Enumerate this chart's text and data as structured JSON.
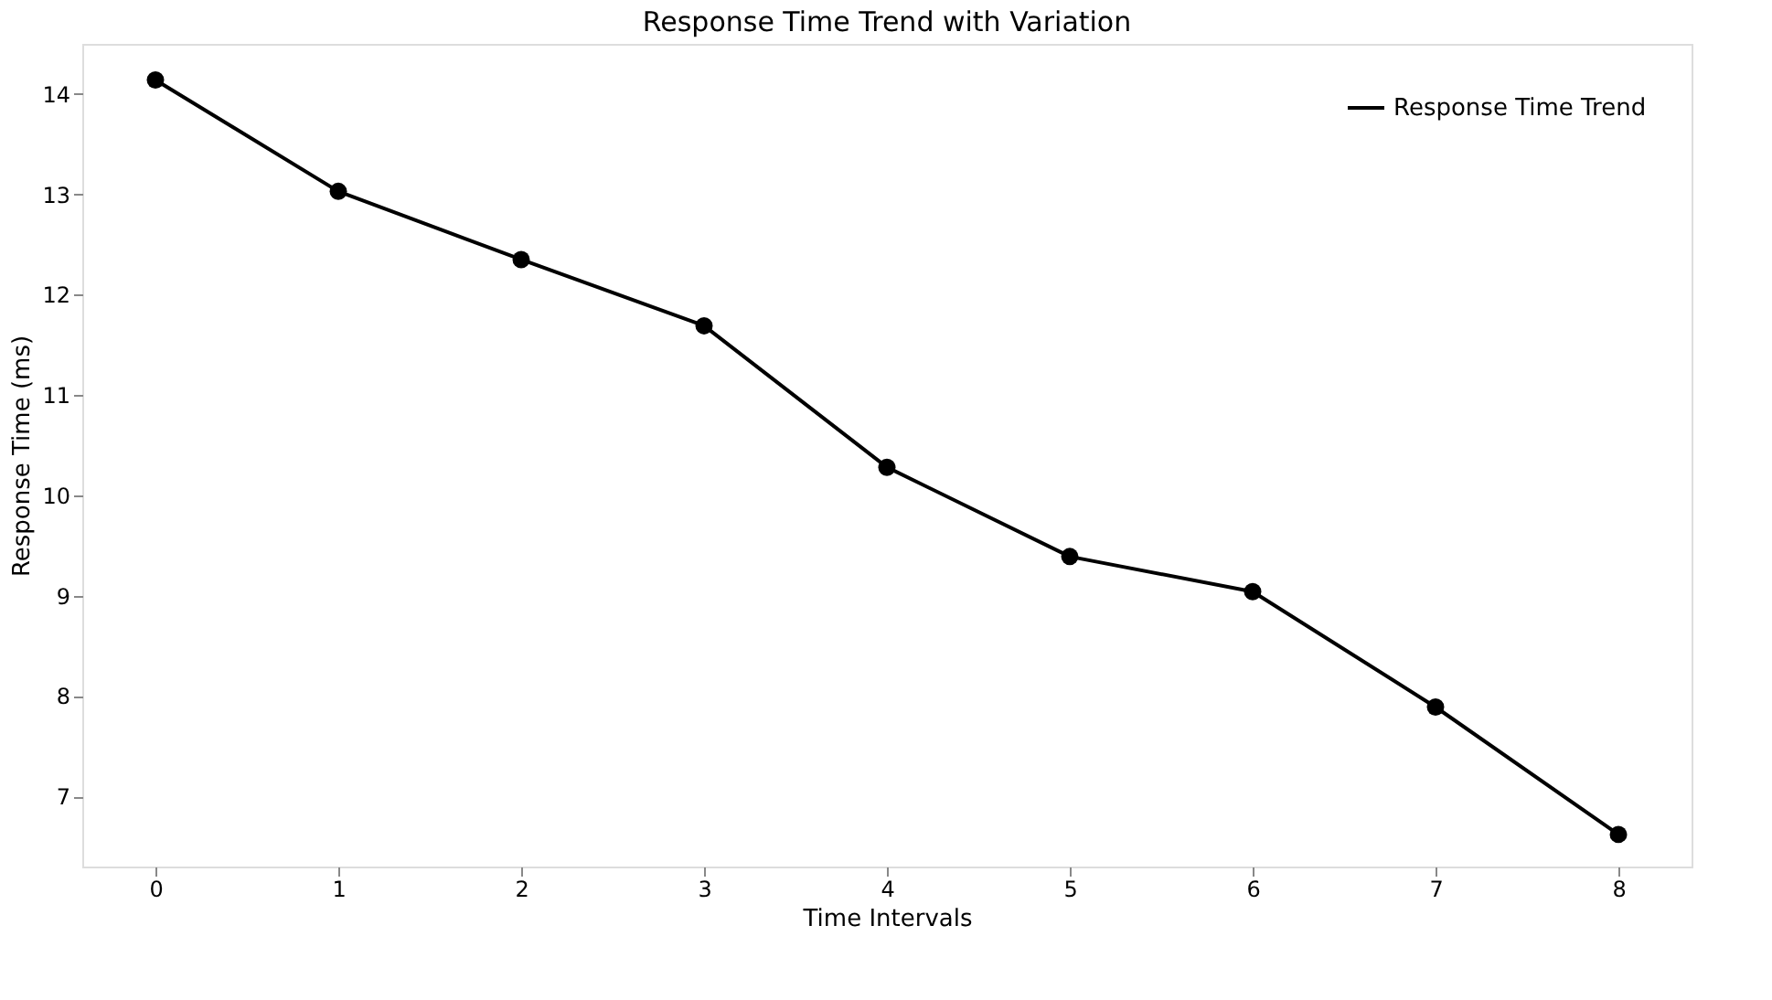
{
  "chart_data": {
    "type": "line",
    "title": "Response Time Trend with Variation",
    "xlabel": "Time Intervals",
    "ylabel": "Response Time (ms)",
    "x": [
      0,
      1,
      2,
      3,
      4,
      5,
      6,
      7,
      8
    ],
    "series": [
      {
        "name": "Response Time Trend",
        "color": "#000000",
        "values": [
          14.14,
          13.03,
          12.35,
          11.69,
          10.28,
          9.39,
          9.04,
          7.89,
          6.62
        ]
      }
    ],
    "xlim": [
      -0.4,
      8.4
    ],
    "xticks": [
      0,
      1,
      2,
      3,
      4,
      5,
      6,
      7,
      8
    ],
    "ylim": [
      6.3,
      14.5
    ],
    "yticks": [
      7,
      8,
      9,
      10,
      11,
      12,
      13,
      14
    ],
    "grid": false,
    "legend": "top right",
    "marker": "circle",
    "line_style": "solid"
  }
}
